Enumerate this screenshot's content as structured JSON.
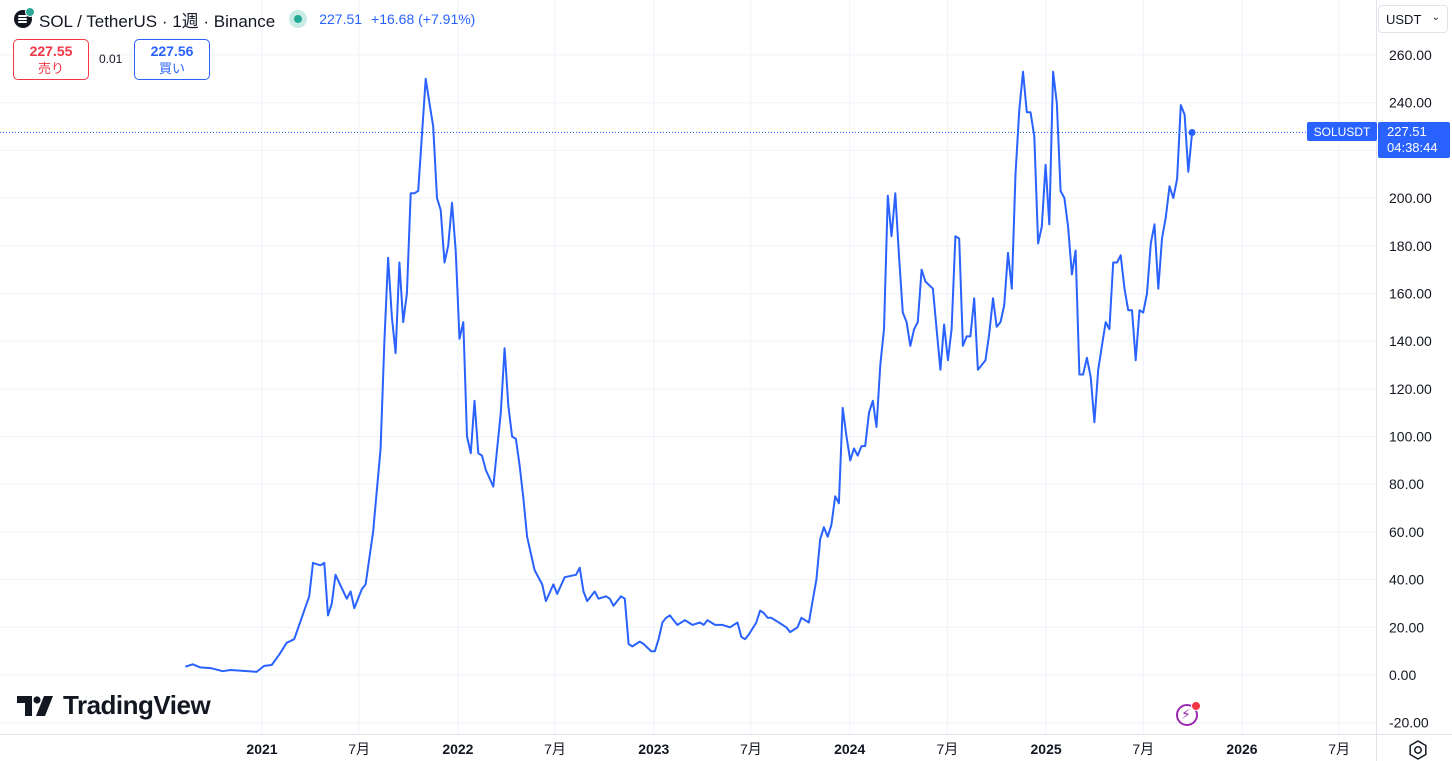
{
  "header": {
    "title": "SOL / TetherUS · 1週 · Binance",
    "last_price": "227.51",
    "change": "+16.68 (+7.91%)"
  },
  "trade": {
    "sell_price": "227.55",
    "sell_label": "売り",
    "spread": "0.01",
    "buy_price": "227.56",
    "buy_label": "買い"
  },
  "currency": "USDT",
  "price_label": {
    "symbol": "SOLUSDT",
    "price": "227.51",
    "countdown": "04:38:44"
  },
  "branding": "TradingView",
  "colors": {
    "line": "#2962ff",
    "sell": "#f23645",
    "buy": "#2962ff",
    "grid": "#f0f3fa"
  },
  "chart_data": {
    "type": "line",
    "title": "SOL / TetherUS · 1週 · Binance",
    "xlabel": "",
    "ylabel": "",
    "ylim": [
      -22,
      270
    ],
    "grid": true,
    "y_ticks": [
      "260.00",
      "240.00",
      "220.00",
      "200.00",
      "180.00",
      "160.00",
      "140.00",
      "120.00",
      "100.00",
      "80.00",
      "60.00",
      "40.00",
      "20.00",
      "0.00",
      "-20.00"
    ],
    "x_ticks": [
      {
        "label": "2021",
        "date": "2021-01-01",
        "bold": true
      },
      {
        "label": "7月",
        "date": "2021-07-01",
        "bold": false
      },
      {
        "label": "2022",
        "date": "2022-01-01",
        "bold": true
      },
      {
        "label": "7月",
        "date": "2022-07-01",
        "bold": false
      },
      {
        "label": "2023",
        "date": "2023-01-01",
        "bold": true
      },
      {
        "label": "7月",
        "date": "2023-07-01",
        "bold": false
      },
      {
        "label": "2024",
        "date": "2024-01-01",
        "bold": true
      },
      {
        "label": "7月",
        "date": "2024-07-01",
        "bold": false
      },
      {
        "label": "2025",
        "date": "2025-01-01",
        "bold": true
      },
      {
        "label": "7月",
        "date": "2025-07-01",
        "bold": false
      },
      {
        "label": "2026",
        "date": "2026-01-01",
        "bold": true
      },
      {
        "label": "7月",
        "date": "2026-07-01",
        "bold": false
      }
    ],
    "series": [
      {
        "points": [
          [
            "2020-08-11",
            3.5
          ],
          [
            "2020-08-25",
            4.5
          ],
          [
            "2020-09-08",
            3.2
          ],
          [
            "2020-09-29",
            2.8
          ],
          [
            "2020-10-20",
            1.6
          ],
          [
            "2020-11-03",
            2.1
          ],
          [
            "2020-12-08",
            1.6
          ],
          [
            "2020-12-22",
            1.3
          ],
          [
            "2021-01-05",
            3.8
          ],
          [
            "2021-01-19",
            4.2
          ],
          [
            "2021-02-02",
            8.5
          ],
          [
            "2021-02-16",
            13.5
          ],
          [
            "2021-03-02",
            15
          ],
          [
            "2021-03-16",
            24
          ],
          [
            "2021-03-30",
            33
          ],
          [
            "2021-04-06",
            47
          ],
          [
            "2021-04-20",
            46
          ],
          [
            "2021-04-27",
            47
          ],
          [
            "2021-05-04",
            25
          ],
          [
            "2021-05-11",
            30
          ],
          [
            "2021-05-18",
            42
          ],
          [
            "2021-06-08",
            32
          ],
          [
            "2021-06-15",
            35
          ],
          [
            "2021-06-22",
            28
          ],
          [
            "2021-07-06",
            36
          ],
          [
            "2021-07-13",
            38
          ],
          [
            "2021-07-27",
            60
          ],
          [
            "2021-08-10",
            95
          ],
          [
            "2021-08-17",
            140
          ],
          [
            "2021-08-24",
            175
          ],
          [
            "2021-08-31",
            150
          ],
          [
            "2021-09-07",
            135
          ],
          [
            "2021-09-14",
            173
          ],
          [
            "2021-09-21",
            148
          ],
          [
            "2021-09-28",
            160
          ],
          [
            "2021-10-05",
            202
          ],
          [
            "2021-10-12",
            202
          ],
          [
            "2021-10-19",
            203
          ],
          [
            "2021-11-02",
            250
          ],
          [
            "2021-11-09",
            240
          ],
          [
            "2021-11-16",
            230
          ],
          [
            "2021-11-23",
            200
          ],
          [
            "2021-11-30",
            195
          ],
          [
            "2021-12-07",
            173
          ],
          [
            "2021-12-14",
            180
          ],
          [
            "2021-12-21",
            198
          ],
          [
            "2021-12-28",
            178
          ],
          [
            "2022-01-04",
            141
          ],
          [
            "2022-01-11",
            148
          ],
          [
            "2022-01-18",
            100
          ],
          [
            "2022-01-25",
            93
          ],
          [
            "2022-02-01",
            115
          ],
          [
            "2022-02-08",
            93
          ],
          [
            "2022-02-15",
            92
          ],
          [
            "2022-02-22",
            86
          ],
          [
            "2022-03-08",
            79
          ],
          [
            "2022-03-22",
            110
          ],
          [
            "2022-03-29",
            137
          ],
          [
            "2022-04-05",
            113
          ],
          [
            "2022-04-12",
            100
          ],
          [
            "2022-04-19",
            99
          ],
          [
            "2022-04-26",
            88
          ],
          [
            "2022-05-03",
            74
          ],
          [
            "2022-05-10",
            58
          ],
          [
            "2022-05-24",
            44
          ],
          [
            "2022-06-07",
            38
          ],
          [
            "2022-06-14",
            31
          ],
          [
            "2022-06-28",
            38
          ],
          [
            "2022-07-05",
            34
          ],
          [
            "2022-07-19",
            41
          ],
          [
            "2022-08-09",
            42
          ],
          [
            "2022-08-16",
            45
          ],
          [
            "2022-08-23",
            35
          ],
          [
            "2022-08-30",
            31
          ],
          [
            "2022-09-06",
            33
          ],
          [
            "2022-09-13",
            35
          ],
          [
            "2022-09-20",
            32
          ],
          [
            "2022-10-04",
            33
          ],
          [
            "2022-10-11",
            32
          ],
          [
            "2022-10-18",
            29
          ],
          [
            "2022-11-01",
            33
          ],
          [
            "2022-11-08",
            32
          ],
          [
            "2022-11-15",
            13
          ],
          [
            "2022-11-22",
            12
          ],
          [
            "2022-12-06",
            14
          ],
          [
            "2022-12-13",
            13
          ],
          [
            "2022-12-27",
            10
          ],
          [
            "2023-01-03",
            10
          ],
          [
            "2023-01-10",
            15
          ],
          [
            "2023-01-17",
            22
          ],
          [
            "2023-01-24",
            24
          ],
          [
            "2023-01-31",
            25
          ],
          [
            "2023-02-07",
            23
          ],
          [
            "2023-02-14",
            21
          ],
          [
            "2023-02-28",
            23
          ],
          [
            "2023-03-07",
            22
          ],
          [
            "2023-03-14",
            21
          ],
          [
            "2023-03-28",
            22
          ],
          [
            "2023-04-04",
            21
          ],
          [
            "2023-04-11",
            23
          ],
          [
            "2023-04-25",
            21
          ],
          [
            "2023-05-09",
            21
          ],
          [
            "2023-05-23",
            20
          ],
          [
            "2023-06-06",
            22
          ],
          [
            "2023-06-13",
            16
          ],
          [
            "2023-06-20",
            15
          ],
          [
            "2023-06-27",
            17
          ],
          [
            "2023-07-11",
            22
          ],
          [
            "2023-07-18",
            27
          ],
          [
            "2023-07-25",
            26
          ],
          [
            "2023-08-01",
            24
          ],
          [
            "2023-08-08",
            24
          ],
          [
            "2023-08-22",
            22
          ],
          [
            "2023-09-05",
            20
          ],
          [
            "2023-09-12",
            18
          ],
          [
            "2023-09-26",
            20
          ],
          [
            "2023-10-03",
            24
          ],
          [
            "2023-10-17",
            22
          ],
          [
            "2023-10-24",
            31
          ],
          [
            "2023-10-31",
            40
          ],
          [
            "2023-11-07",
            57
          ],
          [
            "2023-11-14",
            62
          ],
          [
            "2023-11-21",
            58
          ],
          [
            "2023-11-28",
            63
          ],
          [
            "2023-12-05",
            75
          ],
          [
            "2023-12-12",
            72
          ],
          [
            "2023-12-19",
            112
          ],
          [
            "2023-12-26",
            100
          ],
          [
            "2024-01-02",
            90
          ],
          [
            "2024-01-09",
            95
          ],
          [
            "2024-01-16",
            92
          ],
          [
            "2024-01-23",
            96
          ],
          [
            "2024-01-30",
            96
          ],
          [
            "2024-02-06",
            110
          ],
          [
            "2024-02-13",
            115
          ],
          [
            "2024-02-20",
            104
          ],
          [
            "2024-02-27",
            130
          ],
          [
            "2024-03-05",
            145
          ],
          [
            "2024-03-12",
            201
          ],
          [
            "2024-03-19",
            184
          ],
          [
            "2024-03-26",
            202
          ],
          [
            "2024-04-02",
            175
          ],
          [
            "2024-04-09",
            152
          ],
          [
            "2024-04-16",
            148
          ],
          [
            "2024-04-23",
            138
          ],
          [
            "2024-04-30",
            145
          ],
          [
            "2024-05-07",
            148
          ],
          [
            "2024-05-14",
            170
          ],
          [
            "2024-05-21",
            165
          ],
          [
            "2024-06-04",
            162
          ],
          [
            "2024-06-11",
            145
          ],
          [
            "2024-06-18",
            128
          ],
          [
            "2024-06-25",
            147
          ],
          [
            "2024-07-02",
            132
          ],
          [
            "2024-07-09",
            145
          ],
          [
            "2024-07-16",
            184
          ],
          [
            "2024-07-23",
            183
          ],
          [
            "2024-07-30",
            138
          ],
          [
            "2024-08-06",
            142
          ],
          [
            "2024-08-13",
            142
          ],
          [
            "2024-08-20",
            158
          ],
          [
            "2024-08-27",
            128
          ],
          [
            "2024-09-03",
            130
          ],
          [
            "2024-09-10",
            132
          ],
          [
            "2024-09-17",
            143
          ],
          [
            "2024-09-24",
            158
          ],
          [
            "2024-10-01",
            146
          ],
          [
            "2024-10-08",
            148
          ],
          [
            "2024-10-15",
            155
          ],
          [
            "2024-10-22",
            177
          ],
          [
            "2024-10-29",
            162
          ],
          [
            "2024-11-05",
            210
          ],
          [
            "2024-11-12",
            237
          ],
          [
            "2024-11-19",
            253
          ],
          [
            "2024-11-26",
            236
          ],
          [
            "2024-12-03",
            236
          ],
          [
            "2024-12-10",
            226
          ],
          [
            "2024-12-17",
            181
          ],
          [
            "2024-12-24",
            188
          ],
          [
            "2024-12-31",
            214
          ],
          [
            "2025-01-07",
            189
          ],
          [
            "2025-01-14",
            253
          ],
          [
            "2025-01-21",
            240
          ],
          [
            "2025-01-28",
            203
          ],
          [
            "2025-02-04",
            200
          ],
          [
            "2025-02-11",
            188
          ],
          [
            "2025-02-18",
            168
          ],
          [
            "2025-02-25",
            178
          ],
          [
            "2025-03-04",
            126
          ],
          [
            "2025-03-11",
            126
          ],
          [
            "2025-03-18",
            133
          ],
          [
            "2025-03-25",
            125
          ],
          [
            "2025-04-01",
            106
          ],
          [
            "2025-04-08",
            128
          ],
          [
            "2025-04-15",
            138
          ],
          [
            "2025-04-22",
            148
          ],
          [
            "2025-04-29",
            145
          ],
          [
            "2025-05-06",
            173
          ],
          [
            "2025-05-13",
            173
          ],
          [
            "2025-05-20",
            176
          ],
          [
            "2025-05-27",
            162
          ],
          [
            "2025-06-03",
            153
          ],
          [
            "2025-06-10",
            153
          ],
          [
            "2025-06-17",
            132
          ],
          [
            "2025-06-24",
            153
          ],
          [
            "2025-07-01",
            152
          ],
          [
            "2025-07-08",
            160
          ],
          [
            "2025-07-15",
            181
          ],
          [
            "2025-07-22",
            189
          ],
          [
            "2025-07-29",
            162
          ],
          [
            "2025-08-05",
            183
          ],
          [
            "2025-08-12",
            192
          ],
          [
            "2025-08-19",
            205
          ],
          [
            "2025-08-26",
            200
          ],
          [
            "2025-09-02",
            208
          ],
          [
            "2025-09-09",
            239
          ],
          [
            "2025-09-16",
            235
          ],
          [
            "2025-09-23",
            211
          ],
          [
            "2025-09-30",
            227.51
          ]
        ]
      }
    ]
  }
}
